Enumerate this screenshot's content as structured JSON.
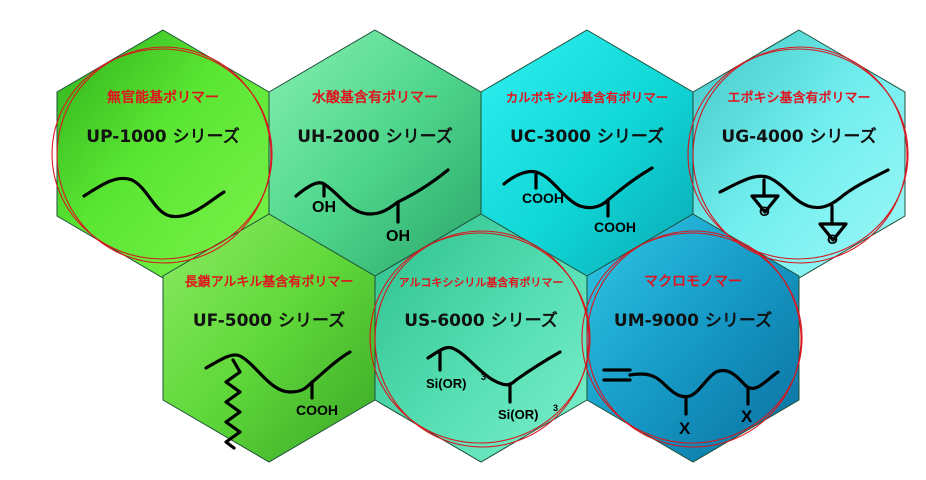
{
  "diagram": {
    "hexagons": [
      {
        "id": "up",
        "title": "無官能基ポリマー",
        "series": "UP-1000 シリーズ",
        "fill": "#4ed629",
        "highlighted": true,
        "structure": "plain-chain",
        "labels": []
      },
      {
        "id": "uh",
        "title": "水酸基含有ポリマー",
        "series": "UH-2000 シリーズ",
        "fill": "#4fd68c",
        "highlighted": false,
        "structure": "hydroxyl-chain",
        "labels": [
          "OH",
          "OH"
        ]
      },
      {
        "id": "uc",
        "title": "カルボキシル基含有ポリマー",
        "series": "UC-3000 シリーズ",
        "fill": "#16e1e1",
        "highlighted": false,
        "structure": "carboxyl-chain",
        "labels": [
          "COOH",
          "COOH"
        ]
      },
      {
        "id": "ug",
        "title": "エポキシ基含有ポリマー",
        "series": "UG-4000 シリーズ",
        "fill": "#6de9e9",
        "highlighted": true,
        "structure": "epoxy-chain",
        "labels": [
          "O",
          "O"
        ]
      },
      {
        "id": "uf",
        "title": "長鎖アルキル基含有ポリマー",
        "series": "UF-5000 シリーズ",
        "fill": "#5fd83a",
        "highlighted": false,
        "structure": "long-alkyl-chain",
        "labels": [
          "COOH"
        ]
      },
      {
        "id": "us",
        "title": "アルコキシシリル基含有ポリマー",
        "series": "US-6000 シリーズ",
        "fill": "#42d6a6",
        "highlighted": true,
        "structure": "silyl-chain",
        "labels": [
          "Si(OR)",
          "3",
          "Si(OR)",
          "3"
        ]
      },
      {
        "id": "um",
        "title": "マクロモノマー",
        "series": "UM-9000 シリーズ",
        "fill": "#1aa7cf",
        "highlighted": true,
        "structure": "macromonomer-chain",
        "labels": [
          "X",
          "X"
        ]
      }
    ],
    "colors": {
      "title": "#e0141e",
      "ring": "#d8161e",
      "outline": "#1f4f3a"
    }
  }
}
